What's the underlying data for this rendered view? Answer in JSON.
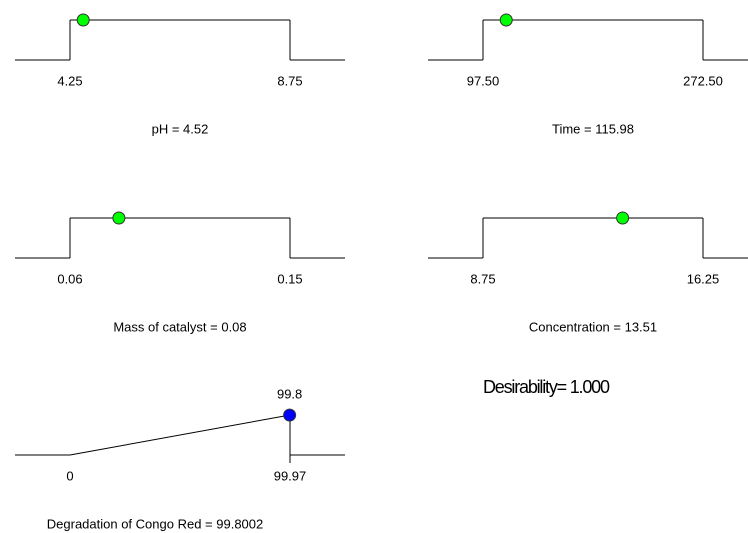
{
  "chart_data": [
    {
      "type": "ramp",
      "title": "pH = 4.52",
      "xlim": [
        4.25,
        8.75
      ],
      "xticks": [
        4.25,
        8.75
      ],
      "value": 4.52,
      "color": "#00ff00"
    },
    {
      "type": "ramp",
      "title": "Time = 115.98",
      "xlim": [
        97.5,
        272.5
      ],
      "xticks": [
        {
          "value": 97.5,
          "label": "97.50"
        },
        {
          "value": 272.5,
          "label": "272.50"
        }
      ],
      "value": 115.98,
      "color": "#00ff00"
    },
    {
      "type": "ramp",
      "title": "Mass of catalyst = 0.08",
      "xlim": [
        0.06,
        0.15
      ],
      "xticks": [
        0.06,
        0.15
      ],
      "value": 0.08,
      "color": "#00ff00"
    },
    {
      "type": "ramp",
      "title": "Concentration = 13.51",
      "xlim": [
        8.75,
        16.25
      ],
      "xticks": [
        8.75,
        16.25
      ],
      "value": 13.51,
      "color": "#00ff00"
    },
    {
      "type": "response",
      "title": "Degradation of Congo Red = 99.8002",
      "xlim": [
        0,
        99.97
      ],
      "xticks": [
        0,
        99.97
      ],
      "value": 99.8,
      "color": "#0000ff"
    }
  ],
  "desirability": "Desirability= 1.000"
}
